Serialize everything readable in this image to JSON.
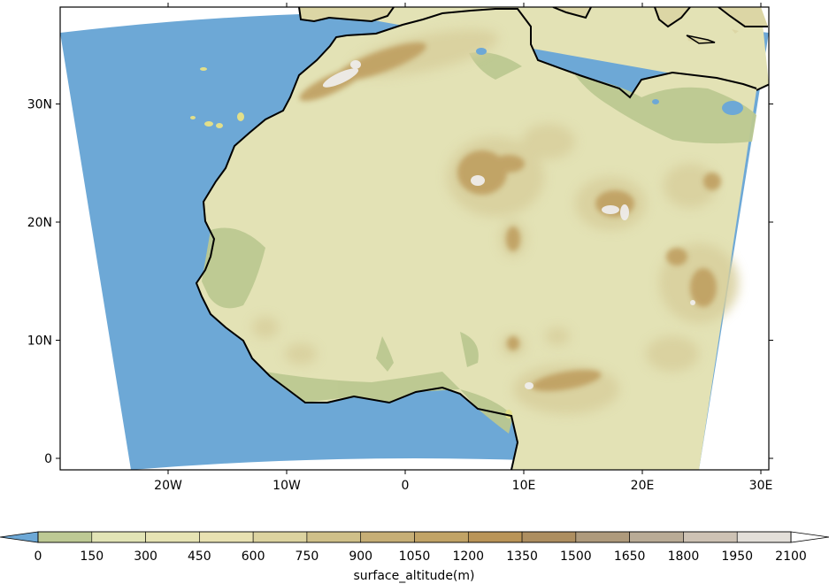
{
  "map": {
    "projection": "rotated / curvilinear regional grid",
    "lon_ticks": [
      {
        "value": -20,
        "label": "20W"
      },
      {
        "value": -10,
        "label": "10W"
      },
      {
        "value": 0,
        "label": "0"
      },
      {
        "value": 10,
        "label": "10E"
      },
      {
        "value": 20,
        "label": "20E"
      },
      {
        "value": 30,
        "label": "30E"
      }
    ],
    "lat_ticks": [
      {
        "value": 0,
        "label": "0"
      },
      {
        "value": 10,
        "label": "10N"
      },
      {
        "value": 20,
        "label": "20N"
      },
      {
        "value": 30,
        "label": "30N"
      }
    ],
    "colors": {
      "ocean": "#6da8d6",
      "coast": "#000000",
      "frame": "#000000",
      "background": "#ffffff"
    }
  },
  "colorbar": {
    "title": "surface_altitude(m)",
    "levels": [
      "0",
      "150",
      "300",
      "450",
      "600",
      "750",
      "900",
      "1050",
      "1200",
      "1350",
      "1500",
      "1650",
      "1800",
      "1950",
      "2100"
    ],
    "under_color": "#6da8d6",
    "over_color": "#ffffff",
    "colors": [
      "#bdc994",
      "#e2e4b6",
      "#e6e3b4",
      "#e8e1b2",
      "#dcd3a0",
      "#cfc089",
      "#c6ae76",
      "#c1a366",
      "#b99458",
      "#ad8e60",
      "#ae9a7c",
      "#b9ab96",
      "#cdc2b4",
      "#e3dfd9"
    ]
  }
}
